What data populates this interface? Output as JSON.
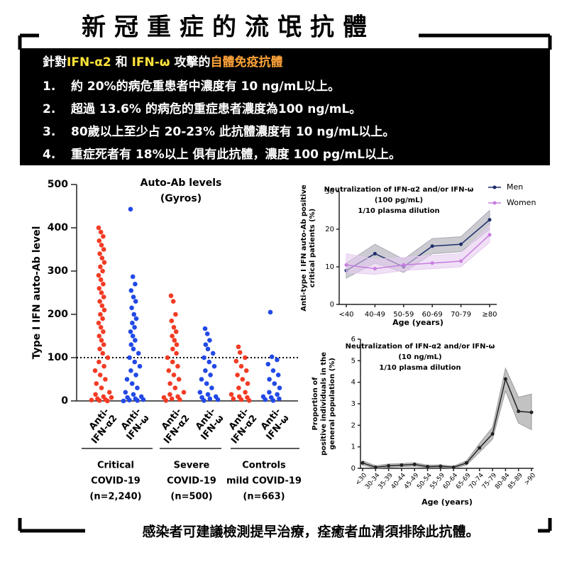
{
  "header": {
    "title": "新冠重症的流氓抗體",
    "subtitle": [
      {
        "text": "針對",
        "color": "#ffffff"
      },
      {
        "text": "IFN-α2",
        "color": "#ffe33a"
      },
      {
        "text": " 和 ",
        "color": "#ffffff"
      },
      {
        "text": "IFN-ω",
        "color": "#ffe33a"
      },
      {
        "text": " 攻擊的",
        "color": "#ffffff"
      },
      {
        "text": "自體免疫抗體",
        "color": "#ffa43a"
      }
    ],
    "bullets": [
      {
        "num": "1.",
        "text": "約 20%的病危重患者中濃度有 10 ng/mL以上。"
      },
      {
        "num": "2.",
        "text": "超過 13.6% 的病危的重症患者濃度為100 ng/mL。"
      },
      {
        "num": "3.",
        "text": "80歲以上至少占 20-23% 此抗體濃度有 10 ng/mL以上。"
      },
      {
        "num": "4.",
        "text": "重症死者有 18%以上 俱有此抗體，濃度 100 pg/mL以上。"
      }
    ]
  },
  "footer": {
    "text": "感染者可建議檢測提早治療，痊癒者血清須排除此抗體。"
  },
  "chart_data": [
    {
      "type": "strip",
      "title": [
        "Auto-Ab levels",
        "(Gyros)"
      ],
      "y_label": "Type I IFN auto-Ab level",
      "ylim": [
        0,
        500
      ],
      "yticks": [
        0,
        100,
        200,
        300,
        400,
        500
      ],
      "reference_line": 100,
      "categories": [
        [
          "Anti-",
          "IFN-α2"
        ],
        [
          "Anti-",
          "IFN-ω"
        ],
        [
          "Anti-",
          "IFN-α2"
        ],
        [
          "Anti-",
          "IFN-ω"
        ],
        [
          "Anti-",
          "IFN-α2"
        ],
        [
          "Anti-",
          "IFN-ω"
        ]
      ],
      "groups": [
        [
          "Critical",
          "COVID-19",
          "(n=2,240)"
        ],
        [
          "Severe",
          "COVID-19",
          "(n=500)"
        ],
        [
          "Controls",
          "mild COVID-19",
          "(n=663)"
        ]
      ],
      "series": [
        {
          "color": "#f23b24",
          "values": [
            400,
            390,
            380,
            370,
            360,
            350,
            340,
            330,
            320,
            310,
            300,
            290,
            280,
            270,
            260,
            250,
            240,
            230,
            220,
            210,
            200,
            190,
            180,
            170,
            160,
            150,
            140,
            130,
            120,
            110,
            100,
            90,
            80,
            70,
            60,
            50,
            40,
            30,
            20,
            15,
            10,
            8,
            5,
            3,
            2,
            1,
            0
          ]
        },
        {
          "color": "#2249e6",
          "values": [
            443,
            287,
            270,
            255,
            240,
            230,
            215,
            200,
            190,
            180,
            170,
            160,
            150,
            140,
            130,
            120,
            110,
            100,
            90,
            80,
            70,
            60,
            50,
            40,
            30,
            20,
            15,
            10,
            8,
            5,
            3,
            2,
            1,
            0
          ]
        },
        {
          "color": "#f23b24",
          "values": [
            243,
            230,
            200,
            185,
            170,
            160,
            150,
            140,
            130,
            120,
            110,
            100,
            90,
            80,
            70,
            60,
            50,
            40,
            30,
            20,
            15,
            10,
            8,
            5,
            3,
            1
          ]
        },
        {
          "color": "#2249e6",
          "values": [
            167,
            155,
            140,
            130,
            120,
            110,
            100,
            90,
            80,
            70,
            60,
            50,
            40,
            30,
            20,
            15,
            10,
            8,
            5,
            3,
            1
          ]
        },
        {
          "color": "#f23b24",
          "values": [
            125,
            112,
            100,
            92,
            80,
            70,
            60,
            50,
            40,
            30,
            20,
            15,
            10,
            8,
            5,
            3,
            1
          ]
        },
        {
          "color": "#2249e6",
          "values": [
            205,
            102,
            95,
            85,
            70,
            60,
            50,
            40,
            30,
            20,
            15,
            10,
            8,
            5,
            3,
            1
          ]
        }
      ]
    },
    {
      "type": "line",
      "title": [
        "Neutralization of IFN-α2 and/or IFN-ω",
        "(100 pg/mL)",
        "1/10 plasma dilution"
      ],
      "y_label": [
        "Anti-type I IFN auto-Ab positive",
        "critical patients (%)"
      ],
      "x_label": "Age (years)",
      "categories": [
        "<40",
        "40-49",
        "50-59",
        "60-69",
        "70-79",
        "≥80"
      ],
      "ylim": [
        0,
        30
      ],
      "yticks": [
        0,
        10,
        20,
        30
      ],
      "legend": "top-right",
      "series": [
        {
          "name": "Men",
          "color": "#1f2d6b",
          "band_color": "#a9a9b3",
          "values": [
            9,
            13.5,
            10,
            15.5,
            16,
            22.5
          ],
          "lower": [
            7,
            11,
            8.5,
            13.5,
            14,
            20
          ],
          "upper": [
            11,
            16,
            12,
            17.5,
            18,
            25
          ]
        },
        {
          "name": "Women",
          "color": "#c77de0",
          "band_color": "#e6ccf0",
          "values": [
            10.5,
            9.5,
            10.5,
            11,
            11.5,
            18.5
          ],
          "lower": [
            8.5,
            8,
            9,
            9.5,
            10,
            16.5
          ],
          "upper": [
            13.5,
            12,
            12.5,
            13,
            13.5,
            21
          ]
        }
      ]
    },
    {
      "type": "line",
      "title": [
        "Neutralization of IFN-α2 and/or IFN-ω",
        "(10 ng/mL)",
        "1/10 plasma dilution"
      ],
      "y_label": [
        "Proportion of",
        "positive individuals in the",
        "general population  (%)"
      ],
      "x_label": "Age (years)",
      "categories": [
        "<30",
        "30-34",
        "35-39",
        "40-44",
        "45-49",
        "50-54",
        "55-59",
        "60-64",
        "65-69",
        "70-74",
        "75-79",
        "80-84",
        "85-89",
        ">90"
      ],
      "ylim": [
        0,
        6
      ],
      "yticks": [
        0,
        1,
        2,
        3,
        4,
        5,
        6
      ],
      "series": [
        {
          "color": "#222222",
          "band_color": "#999999",
          "values": [
            0.25,
            0.05,
            0.12,
            0.15,
            0.18,
            0.08,
            0.1,
            0.05,
            0.25,
            0.95,
            1.6,
            4.15,
            2.65,
            2.6
          ],
          "lower": [
            0.15,
            0,
            0.05,
            0.08,
            0.1,
            0.03,
            0.04,
            0,
            0.15,
            0.75,
            1.35,
            3.6,
            2.1,
            1.8
          ],
          "upper": [
            0.35,
            0.12,
            0.2,
            0.22,
            0.26,
            0.15,
            0.16,
            0.1,
            0.35,
            1.15,
            1.9,
            4.65,
            3.3,
            3.45
          ]
        }
      ]
    }
  ]
}
